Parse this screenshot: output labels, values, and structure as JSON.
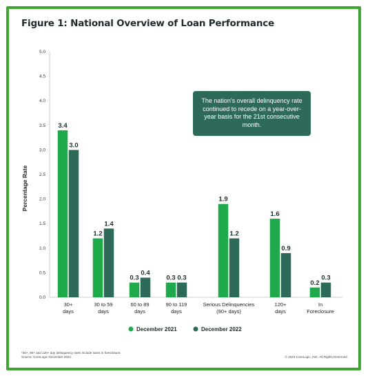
{
  "title": "Figure 1: National Overview of Loan Performance",
  "colors": {
    "frame": "#3fa535",
    "series_2021": "#1ea94b",
    "series_2022": "#2d6a5a",
    "callout": "#2d6a5a"
  },
  "chart_data": {
    "type": "bar",
    "title": "Figure 1: National Overview of Loan Performance",
    "ylabel": "Percentage Rate",
    "xlabel": "",
    "ylim": [
      0,
      5.0
    ],
    "yticks": [
      "0.0",
      "0.5",
      "1.0",
      "1.5",
      "2.0",
      "2.5",
      "3.0",
      "3.5",
      "4.0",
      "4.5",
      "5.0"
    ],
    "grid": false,
    "legend": "bottom",
    "categories": [
      [
        "30+",
        "days"
      ],
      [
        "30 to 59",
        "days"
      ],
      [
        "60 to 89",
        "days"
      ],
      [
        "90 to 119",
        "days"
      ],
      [
        "Serious Delinquencies",
        "(90+ days)"
      ],
      [
        "120+",
        "days"
      ],
      [
        "In",
        "Foreclosure"
      ]
    ],
    "series": [
      {
        "name": "December 2021",
        "values": [
          3.4,
          1.2,
          0.3,
          0.3,
          1.9,
          1.6,
          0.2
        ],
        "labels": [
          "3.4",
          "1.2",
          "0.3",
          "0.3",
          "1.9",
          "1.6",
          "0.2"
        ]
      },
      {
        "name": "December 2022",
        "values": [
          3.0,
          1.4,
          0.4,
          0.3,
          1.2,
          0.9,
          0.3
        ],
        "labels": [
          "3.0",
          "1.4",
          "0.4",
          "0.3",
          "1.2",
          "0.9",
          "0.3"
        ]
      }
    ],
    "annotation": "The nation's overall delinquency rate continued to recede on a year-over-year basis for the 21st consecutive month."
  },
  "footnote": {
    "line1": "*30+, 90+ and 120+ day delinquency rates include loans in foreclosure.",
    "line2": "Source: CoreLogic December 2022"
  },
  "copyright": "© 2023 CoreLogic, INC. All Rights Reserved."
}
